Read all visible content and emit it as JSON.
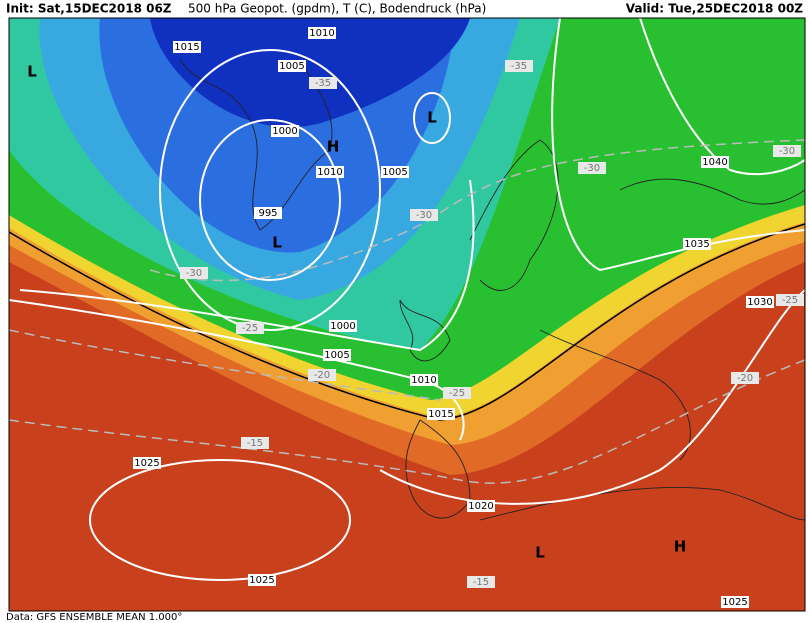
{
  "header": {
    "init": "Init: Sat,15DEC2018 06Z",
    "fields": "500 hPa Geopot. (gpdm), T (C), Bodendruck (hPa)",
    "valid": "Valid: Tue,25DEC2018 00Z"
  },
  "map": {
    "isobar_labels": [
      "1015",
      "1010",
      "1005",
      "1000",
      "1010",
      "1005",
      "995",
      "1000",
      "1005",
      "1010",
      "1015",
      "1025",
      "1020",
      "1025",
      "1025",
      "1030",
      "1035",
      "1040"
    ],
    "temperature_labels": [
      "-35",
      "-35",
      "-30",
      "-30",
      "-25",
      "-20",
      "-15",
      "-25",
      "-30",
      "-25",
      "-20",
      "-15",
      "-30"
    ],
    "pressure_centers": [
      "L",
      "L",
      "H",
      "L",
      "L",
      "H"
    ]
  },
  "footer": "Data: GFS ENSEMBLE MEAN 1.000°"
}
